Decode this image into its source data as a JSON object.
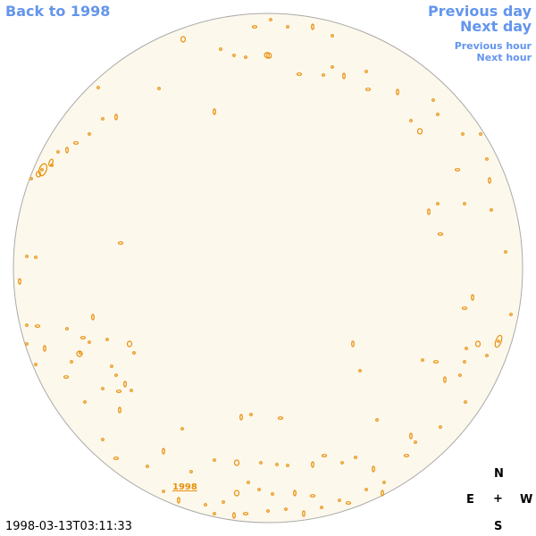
{
  "navigation": {
    "back": "Back to 1998",
    "previous_day": "Previous day",
    "next_day": "Next day",
    "previous_hour": "Previous hour",
    "next_hour": "Next hour"
  },
  "disk_label": "1998",
  "compass": {
    "north": "N",
    "east": "E",
    "center": "+",
    "west": "W",
    "south": "S"
  },
  "timestamp": "1998-03-13T03:11:33"
}
